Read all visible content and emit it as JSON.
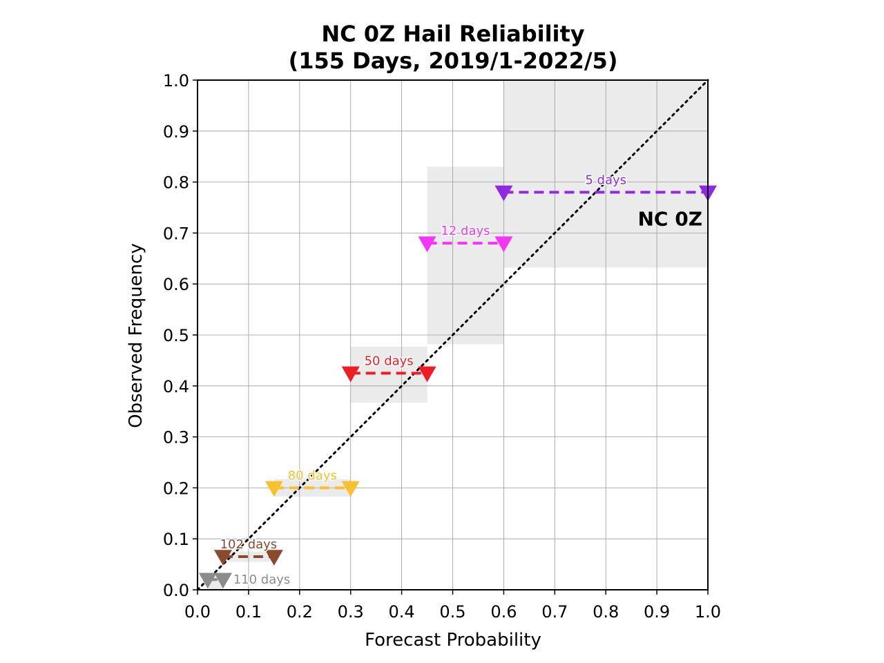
{
  "chart_data": {
    "type": "scatter",
    "title_line1": "NC 0Z Hail Reliability",
    "title_line2": "(155 Days, 2019/1-2022/5)",
    "xlabel": "Forecast Probability",
    "ylabel": "Observed Frequency",
    "xlim": [
      0.0,
      1.0
    ],
    "ylim": [
      0.0,
      1.0
    ],
    "xticks": [
      "0.0",
      "0.1",
      "0.2",
      "0.3",
      "0.4",
      "0.5",
      "0.6",
      "0.7",
      "0.8",
      "0.9",
      "1.0"
    ],
    "yticks": [
      "0.0",
      "0.1",
      "0.2",
      "0.3",
      "0.4",
      "0.5",
      "0.6",
      "0.7",
      "0.8",
      "0.9",
      "1.0"
    ],
    "grid": true,
    "panel_label": "NC 0Z",
    "reference_line": "perfect reliability diagonal (y = x)",
    "bins": [
      {
        "label": "110 days",
        "x0": 0.02,
        "x1": 0.05,
        "y": 0.02,
        "ci": [
          0.0,
          0.03
        ],
        "color": "#8c8c8c"
      },
      {
        "label": "102 days",
        "x0": 0.05,
        "x1": 0.15,
        "y": 0.065,
        "ci": [
          0.055,
          0.075
        ],
        "color": "#8b4a2e"
      },
      {
        "label": "80 days",
        "x0": 0.15,
        "x1": 0.3,
        "y": 0.2,
        "ci": [
          0.183,
          0.217
        ],
        "color": "#fbc02d"
      },
      {
        "label": "50 days",
        "x0": 0.3,
        "x1": 0.45,
        "y": 0.425,
        "ci": [
          0.367,
          0.477
        ],
        "color": "#f01c24"
      },
      {
        "label": "12 days",
        "x0": 0.45,
        "x1": 0.6,
        "y": 0.68,
        "ci": [
          0.482,
          0.83
        ],
        "color": "#f535f5"
      },
      {
        "label": "5 days",
        "x0": 0.6,
        "x1": 1.0,
        "y": 0.78,
        "ci": [
          0.632,
          1.0
        ],
        "color": "#8e2be2"
      }
    ]
  }
}
